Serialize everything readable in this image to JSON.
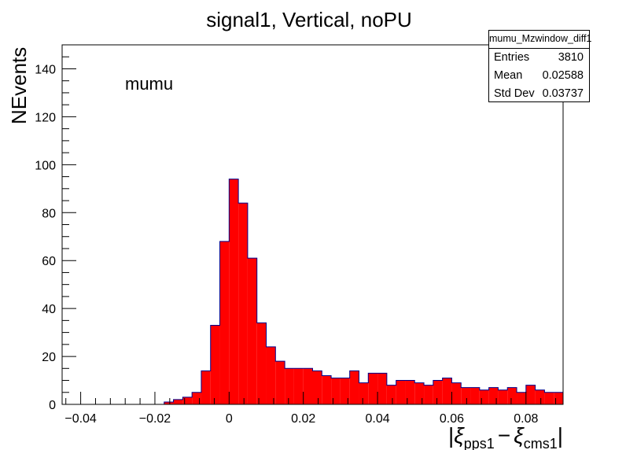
{
  "chart_data": {
    "type": "bar",
    "title": "signal1, Vertical, noPU",
    "ylabel": "NEvents",
    "xlabel": {
      "prefix": "|",
      "term1": "ξ",
      "sub1": "pps1",
      "minus": "−",
      "term2": "ξ",
      "sub2": "cms1",
      "suffix": "|"
    },
    "annotation": "mumu",
    "xlim": [
      -0.045,
      0.09
    ],
    "ylim": [
      0,
      150
    ],
    "bin_width": 0.0025,
    "x_ticks": [
      -0.04,
      -0.02,
      0,
      0.02,
      0.04,
      0.06,
      0.08
    ],
    "x_tick_labels": [
      "−0.04",
      "−0.02",
      "0",
      "0.02",
      "0.04",
      "0.06",
      "0.08"
    ],
    "y_ticks": [
      0,
      20,
      40,
      60,
      80,
      100,
      120,
      140
    ],
    "y_tick_labels": [
      "0",
      "20",
      "40",
      "60",
      "80",
      "100",
      "120",
      "140"
    ],
    "bin_low_edges": [
      -0.045,
      -0.0425,
      -0.04,
      -0.0375,
      -0.035,
      -0.0325,
      -0.03,
      -0.0275,
      -0.025,
      -0.0225,
      -0.02,
      -0.0175,
      -0.015,
      -0.0125,
      -0.01,
      -0.0075,
      -0.005,
      -0.0025,
      0,
      0.0025,
      0.005,
      0.0075,
      0.01,
      0.0125,
      0.015,
      0.0175,
      0.02,
      0.0225,
      0.025,
      0.0275,
      0.03,
      0.0325,
      0.035,
      0.0375,
      0.04,
      0.0425,
      0.045,
      0.0475,
      0.05,
      0.0525,
      0.055,
      0.0575,
      0.06,
      0.0625,
      0.065,
      0.0675,
      0.07,
      0.0725,
      0.075,
      0.0775,
      0.08,
      0.0825,
      0.085,
      0.0875
    ],
    "values": [
      0,
      0,
      0,
      0,
      0,
      0,
      0,
      0,
      0,
      0,
      0,
      1,
      2,
      3,
      5,
      14,
      33,
      68,
      94,
      84,
      61,
      34,
      24,
      18,
      15,
      15,
      15,
      14,
      12,
      11,
      11,
      14,
      9,
      13,
      13,
      8,
      10,
      10,
      9,
      8,
      10,
      11,
      9,
      7,
      7,
      6,
      7,
      6,
      7,
      5,
      8,
      6,
      5,
      5
    ],
    "fill_color": "#ff0000",
    "line_color": "#00008b",
    "grid": false,
    "legend": "none",
    "stats": {
      "name": "mumu_Mzwindow_diff1",
      "rows": [
        {
          "label": "Entries",
          "value": "3810"
        },
        {
          "label": "Mean",
          "value": "0.02588"
        },
        {
          "label": "Std Dev",
          "value": "0.03737"
        }
      ]
    }
  }
}
